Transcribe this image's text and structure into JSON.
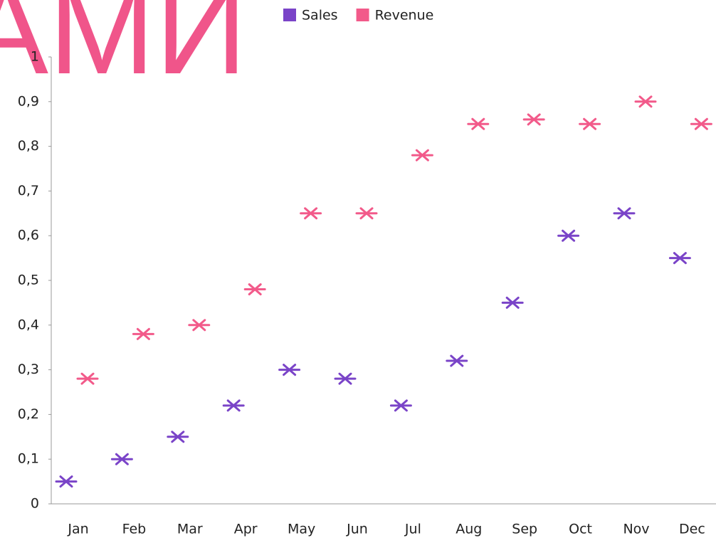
{
  "chart_data": {
    "type": "scatter",
    "title": "АМИ",
    "categories": [
      "Jan",
      "Feb",
      "Mar",
      "Apr",
      "May",
      "Jun",
      "Jul",
      "Aug",
      "Sep",
      "Oct",
      "Nov",
      "Dec"
    ],
    "series": [
      {
        "name": "Sales",
        "color": "#7a44c8",
        "values": [
          0.05,
          0.1,
          0.15,
          0.22,
          0.3,
          0.28,
          0.22,
          0.32,
          0.45,
          0.6,
          0.65,
          0.55
        ]
      },
      {
        "name": "Revenue",
        "color": "#f25a8a",
        "values": [
          0.28,
          0.38,
          0.4,
          0.48,
          0.65,
          0.65,
          0.78,
          0.85,
          0.86,
          0.85,
          0.9,
          0.85
        ]
      }
    ],
    "ylim": [
      0,
      1
    ],
    "yticks": [
      0,
      {
        "value": 0.1,
        "label": "0,1"
      },
      {
        "value": 0.2,
        "label": "0,2"
      },
      {
        "value": 0.3,
        "label": "0,3"
      },
      {
        "value": 0.4,
        "label": "0,4"
      },
      {
        "value": 0.5,
        "label": "0,5"
      },
      {
        "value": 0.6,
        "label": "0,6"
      },
      {
        "value": 0.7,
        "label": "0,7"
      },
      {
        "value": 0.8,
        "label": "0,8"
      },
      {
        "value": 0.9,
        "label": "0,9"
      },
      1
    ],
    "grid": false,
    "legend": "top"
  }
}
